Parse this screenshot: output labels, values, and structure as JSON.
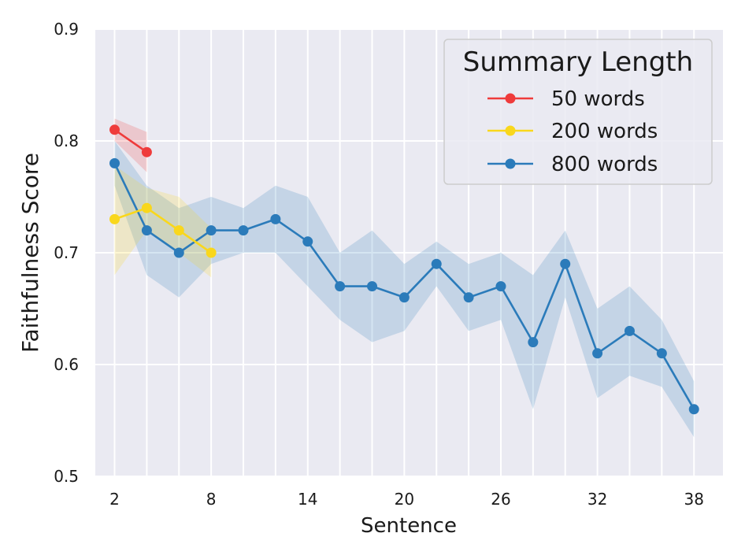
{
  "chart_data": {
    "type": "line",
    "title": "",
    "xlabel": "Sentence",
    "ylabel": "Faithfulness Score",
    "xlim": [
      0.8,
      39.8
    ],
    "ylim": [
      0.5,
      0.9
    ],
    "x_ticks": [
      2,
      8,
      14,
      20,
      26,
      32,
      38
    ],
    "y_ticks": [
      0.5,
      0.6,
      0.7,
      0.8,
      0.9
    ],
    "x_tick_labels": [
      "2",
      "8",
      "14",
      "20",
      "26",
      "32",
      "38"
    ],
    "y_tick_labels": [
      "0.5",
      "0.6",
      "0.7",
      "0.8",
      "0.9"
    ],
    "grid": true,
    "background_color": "#eaeaf2",
    "legend": {
      "title": "Summary Length",
      "placement": "top-right"
    },
    "series": [
      {
        "name": "50 words",
        "color": "#ef3b3b",
        "x": [
          2,
          4
        ],
        "y": [
          0.81,
          0.79
        ],
        "ci_lower": [
          0.8,
          0.772
        ],
        "ci_upper": [
          0.82,
          0.808
        ]
      },
      {
        "name": "200 words",
        "color": "#f9d71c",
        "x": [
          2,
          4,
          6,
          8
        ],
        "y": [
          0.73,
          0.74,
          0.72,
          0.7
        ],
        "ci_lower": [
          0.68,
          0.72,
          0.7,
          0.678
        ],
        "ci_upper": [
          0.778,
          0.758,
          0.75,
          0.722
        ]
      },
      {
        "name": "800 words",
        "color": "#2b7bba",
        "x": [
          2,
          4,
          6,
          8,
          10,
          12,
          14,
          16,
          18,
          20,
          22,
          24,
          26,
          28,
          30,
          32,
          34,
          36,
          38
        ],
        "y": [
          0.78,
          0.72,
          0.7,
          0.72,
          0.72,
          0.73,
          0.71,
          0.67,
          0.67,
          0.66,
          0.69,
          0.66,
          0.67,
          0.62,
          0.69,
          0.61,
          0.63,
          0.61,
          0.56
        ],
        "ci_lower": [
          0.76,
          0.68,
          0.66,
          0.69,
          0.7,
          0.7,
          0.67,
          0.64,
          0.62,
          0.63,
          0.67,
          0.63,
          0.64,
          0.56,
          0.66,
          0.57,
          0.59,
          0.58,
          0.535
        ],
        "ci_upper": [
          0.8,
          0.76,
          0.74,
          0.75,
          0.74,
          0.76,
          0.75,
          0.7,
          0.72,
          0.69,
          0.71,
          0.69,
          0.7,
          0.68,
          0.72,
          0.65,
          0.67,
          0.64,
          0.585
        ]
      }
    ]
  }
}
